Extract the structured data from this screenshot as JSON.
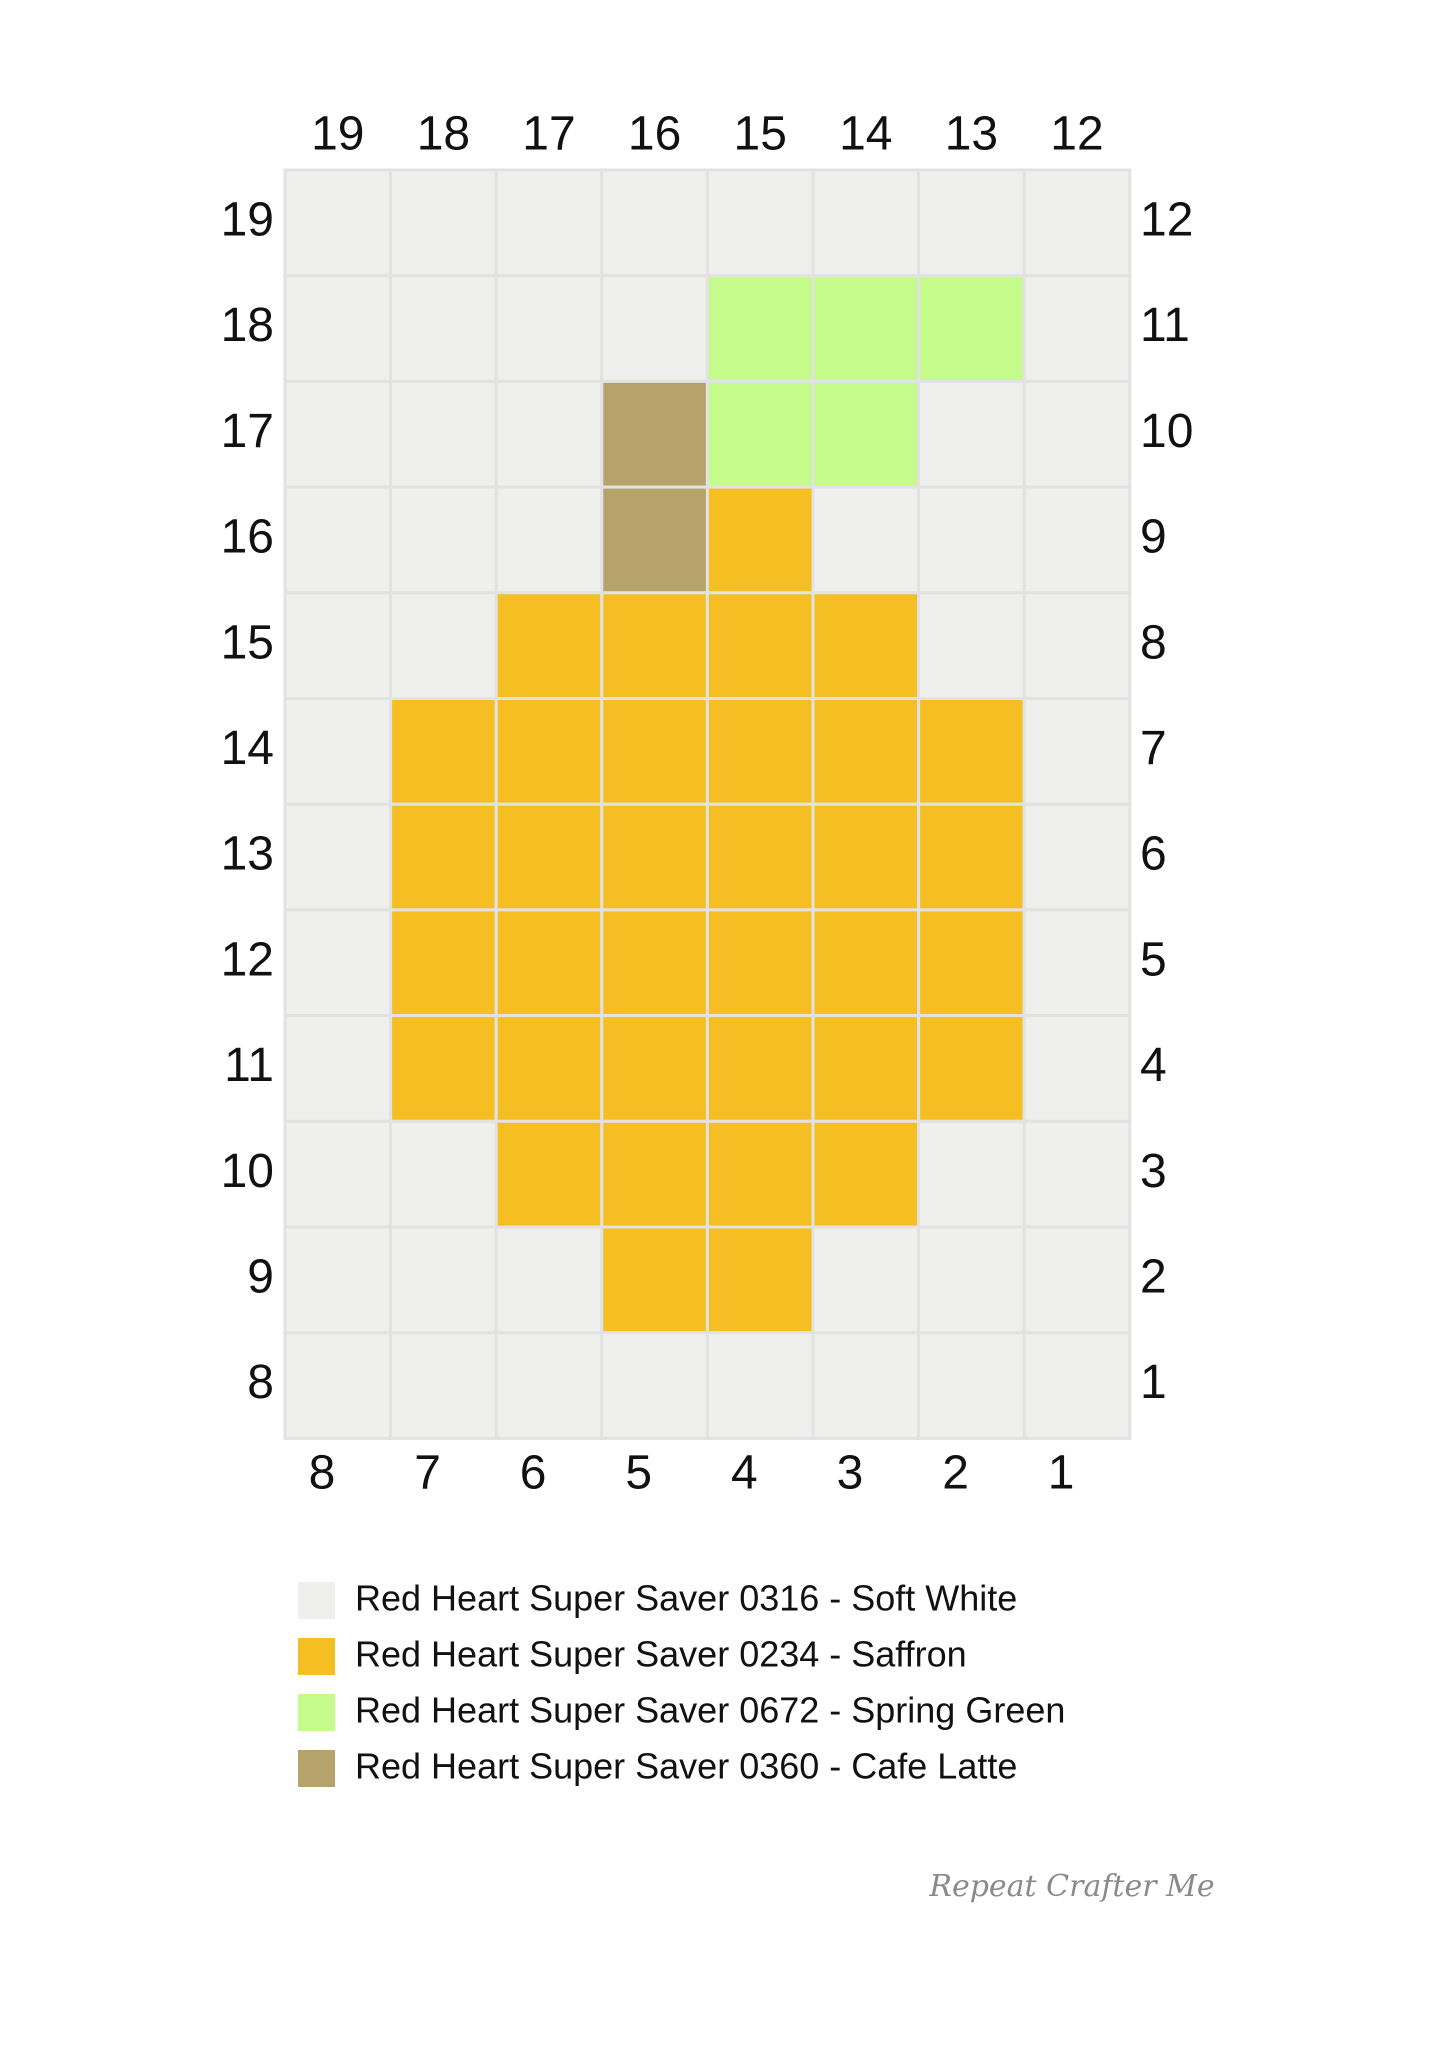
{
  "top_labels": [
    "19",
    "18",
    "17",
    "16",
    "15",
    "14",
    "13",
    "12"
  ],
  "left_labels": [
    "19",
    "18",
    "17",
    "16",
    "15",
    "14",
    "13",
    "12",
    "11",
    "10",
    "9",
    "8"
  ],
  "right_labels": [
    "12",
    "11",
    "10",
    "9",
    "8",
    "7",
    "6",
    "5",
    "4",
    "3",
    "2",
    "1"
  ],
  "bottom_labels": [
    "8",
    "7",
    "6",
    "5",
    "4",
    "3",
    "2",
    "1"
  ],
  "legend": [
    {
      "label": "Red Heart Super Saver 0316 - Soft White",
      "color": "#efefed"
    },
    {
      "label": "Red Heart Super Saver 0234 - Saffron",
      "color": "#f5be22"
    },
    {
      "label": "Red Heart Super Saver 0672 - Spring Green",
      "color": "#c5fb8b"
    },
    {
      "label": "Red Heart Super Saver 0360 - Cafe Latte",
      "color": "#b6a26b"
    }
  ],
  "grid": [
    [
      0,
      0,
      0,
      0,
      0,
      0,
      0,
      0
    ],
    [
      0,
      0,
      0,
      0,
      2,
      2,
      2,
      0
    ],
    [
      0,
      0,
      0,
      3,
      2,
      2,
      0,
      0
    ],
    [
      0,
      0,
      0,
      3,
      1,
      0,
      0,
      0
    ],
    [
      0,
      0,
      1,
      1,
      1,
      1,
      0,
      0
    ],
    [
      0,
      1,
      1,
      1,
      1,
      1,
      1,
      0
    ],
    [
      0,
      1,
      1,
      1,
      1,
      1,
      1,
      0
    ],
    [
      0,
      1,
      1,
      1,
      1,
      1,
      1,
      0
    ],
    [
      0,
      1,
      1,
      1,
      1,
      1,
      1,
      0
    ],
    [
      0,
      0,
      1,
      1,
      1,
      1,
      0,
      0
    ],
    [
      0,
      0,
      0,
      1,
      1,
      0,
      0,
      0
    ],
    [
      0,
      0,
      0,
      0,
      0,
      0,
      0,
      0
    ]
  ],
  "logo": "Repeat Crafter Me"
}
